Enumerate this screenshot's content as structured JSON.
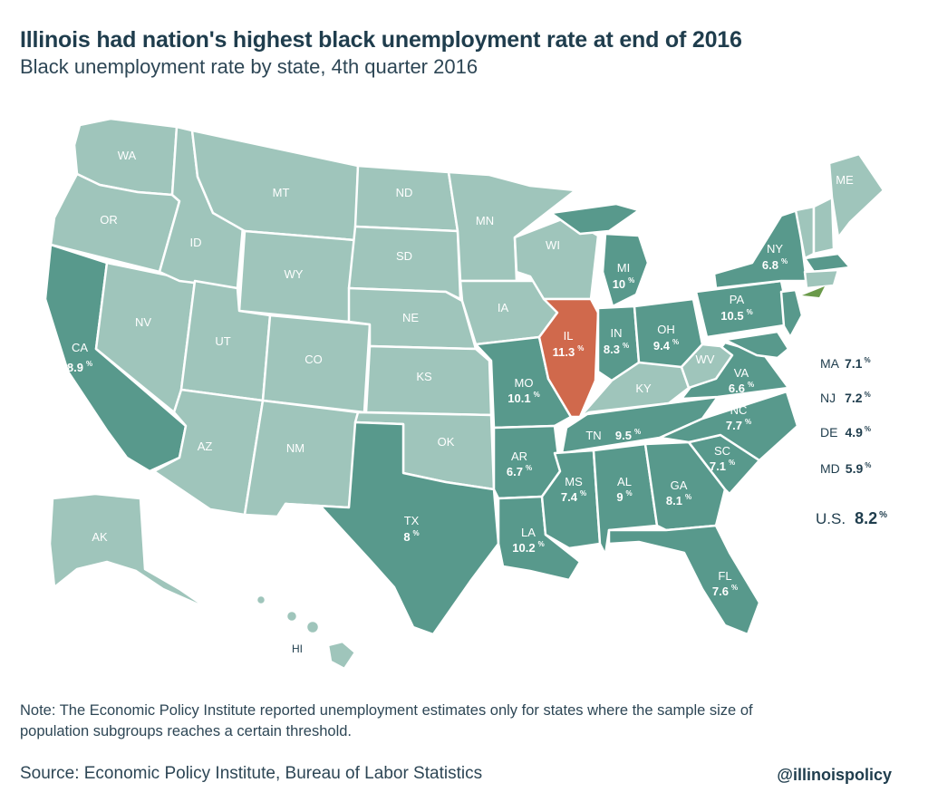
{
  "header": {
    "title": "Illinois had nation's highest black unemployment rate at end of 2016",
    "subtitle": "Black unemployment rate by state, 4th quarter 2016"
  },
  "colors": {
    "no_data": "#9fc5bb",
    "has_data": "#58998c",
    "highlight": "#d0694c",
    "text": "#1f3d4d"
  },
  "states": {
    "WA": {
      "label": "WA",
      "value": ""
    },
    "OR": {
      "label": "OR",
      "value": ""
    },
    "CA": {
      "label": "CA",
      "value": "8.9"
    },
    "ID": {
      "label": "ID",
      "value": ""
    },
    "NV": {
      "label": "NV",
      "value": ""
    },
    "MT": {
      "label": "MT",
      "value": ""
    },
    "WY": {
      "label": "WY",
      "value": ""
    },
    "UT": {
      "label": "UT",
      "value": ""
    },
    "AZ": {
      "label": "AZ",
      "value": ""
    },
    "CO": {
      "label": "CO",
      "value": ""
    },
    "NM": {
      "label": "NM",
      "value": ""
    },
    "ND": {
      "label": "ND",
      "value": ""
    },
    "SD": {
      "label": "SD",
      "value": ""
    },
    "NE": {
      "label": "NE",
      "value": ""
    },
    "KS": {
      "label": "KS",
      "value": ""
    },
    "OK": {
      "label": "OK",
      "value": ""
    },
    "TX": {
      "label": "TX",
      "value": "8"
    },
    "MN": {
      "label": "MN",
      "value": ""
    },
    "IA": {
      "label": "IA",
      "value": ""
    },
    "MO": {
      "label": "MO",
      "value": "10.1"
    },
    "AR": {
      "label": "AR",
      "value": "6.7"
    },
    "LA": {
      "label": "LA",
      "value": "10.2"
    },
    "WI": {
      "label": "WI",
      "value": ""
    },
    "IL": {
      "label": "IL",
      "value": "11.3"
    },
    "MI": {
      "label": "MI",
      "value": "10"
    },
    "IN": {
      "label": "IN",
      "value": "8.3"
    },
    "OH": {
      "label": "OH",
      "value": "9.4"
    },
    "KY": {
      "label": "KY",
      "value": ""
    },
    "TN": {
      "label": "TN",
      "value": "9.5"
    },
    "MS": {
      "label": "MS",
      "value": "7.4"
    },
    "AL": {
      "label": "AL",
      "value": "9"
    },
    "GA": {
      "label": "GA",
      "value": "8.1"
    },
    "FL": {
      "label": "FL",
      "value": "7.6"
    },
    "SC": {
      "label": "SC",
      "value": "7.1"
    },
    "NC": {
      "label": "NC",
      "value": "7.7"
    },
    "VA": {
      "label": "VA",
      "value": "6.6"
    },
    "WV": {
      "label": "WV",
      "value": ""
    },
    "PA": {
      "label": "PA",
      "value": "10.5"
    },
    "NY": {
      "label": "NY",
      "value": "6.8"
    },
    "ME": {
      "label": "ME",
      "value": ""
    },
    "AK": {
      "label": "AK",
      "value": ""
    },
    "HI": {
      "label": "HI",
      "value": ""
    }
  },
  "percent_symbol": "%",
  "side_list": [
    {
      "state": "MA",
      "value": "7.1"
    },
    {
      "state": "NJ",
      "value": "7.2"
    },
    {
      "state": "DE",
      "value": "4.9"
    },
    {
      "state": "MD",
      "value": "5.9"
    }
  ],
  "national": {
    "label": "U.S.",
    "value": "8.2"
  },
  "note": "Note: The Economic Policy Institute reported unemployment estimates only for states where the sample size of population subgroups reaches a certain threshold.",
  "source": "Source: Economic Policy Institute, Bureau of Labor Statistics",
  "handle": "@illinoispolicy"
}
